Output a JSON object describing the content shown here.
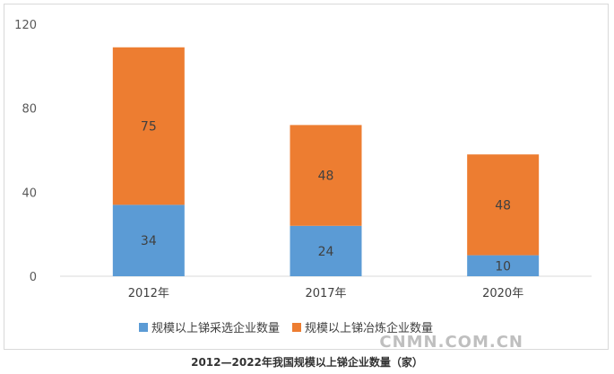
{
  "caption": "2012—2022年我国规模以上锑企业数量（家）",
  "watermark": "CNMN.COM.CN",
  "colors": {
    "mining": "#5b9bd5",
    "smelting": "#ed7d31",
    "axis": "#d9d9d9"
  },
  "chart_data": {
    "type": "bar",
    "stacked": true,
    "categories": [
      "2012年",
      "2017年",
      "2020年"
    ],
    "series": [
      {
        "name": "规模以上锑采选企业数量",
        "values": [
          34,
          24,
          10
        ]
      },
      {
        "name": "规模以上锑冶炼企业数量",
        "values": [
          75,
          48,
          48
        ]
      }
    ],
    "ylim": [
      0,
      120
    ],
    "yticks": [
      0,
      40,
      80,
      120
    ],
    "grid": false,
    "legend": "bottom",
    "title": "",
    "xlabel": "",
    "ylabel": ""
  }
}
